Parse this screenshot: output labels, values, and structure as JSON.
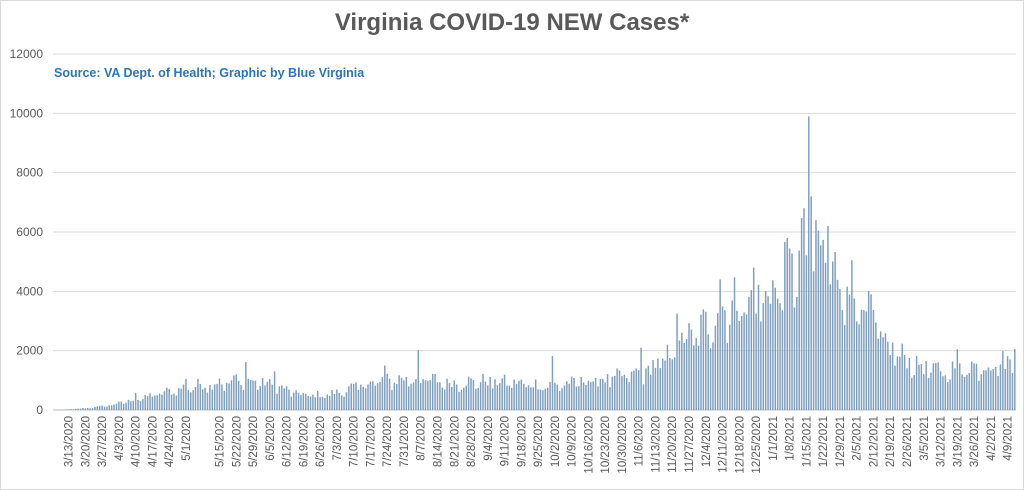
{
  "chart_data": {
    "type": "bar",
    "title": "Virginia COVID-19 NEW Cases*",
    "subtitle": "Source: VA Dept. of Health; Graphic by Blue Virginia",
    "ylim": [
      0,
      12000
    ],
    "yticks": [
      0,
      2000,
      4000,
      6000,
      8000,
      10000,
      12000
    ],
    "grid": true,
    "x_start": "2020-03-07",
    "x_end": "2021-04-12",
    "x_tick_labels": [
      "3/13/2020",
      "3/20/2020",
      "3/27/2020",
      "4/3/2020",
      "4/10/2020",
      "4/17/2020",
      "4/24/2020",
      "5/1/2020",
      "5/15/2020",
      "5/22/2020",
      "5/29/2020",
      "6/5/2020",
      "6/12/2020",
      "6/19/2020",
      "6/26/2020",
      "7/3/2020",
      "7/10/2020",
      "7/17/2020",
      "7/24/2020",
      "7/31/2020",
      "8/7/2020",
      "8/14/2020",
      "8/21/2020",
      "8/28/2020",
      "9/4/2020",
      "9/11/2020",
      "9/18/2020",
      "9/25/2020",
      "10/2/2020",
      "10/9/2020",
      "10/16/2020",
      "10/23/2020",
      "10/30/2020",
      "11/6/2020",
      "11/13/2020",
      "11/20/2020",
      "11/27/2020",
      "12/4/2020",
      "12/11/2020",
      "12/18/2020",
      "12/25/2020",
      "1/1/2021",
      "1/8/2021",
      "1/15/2021",
      "1/22/2021",
      "1/29/2021",
      "2/5/2021",
      "2/12/2021",
      "2/19/2021",
      "2/26/2021",
      "3/5/2021",
      "3/12/2021",
      "3/19/2021",
      "3/26/2021",
      "4/2/2021",
      "4/9/2021"
    ],
    "bar_color": "#7f9fbf",
    "weekly_avg_daily_new_cases": [
      {
        "week_of": "3/7/2020",
        "value": 5
      },
      {
        "week_of": "3/14/2020",
        "value": 40
      },
      {
        "week_of": "3/21/2020",
        "value": 90
      },
      {
        "week_of": "3/28/2020",
        "value": 170
      },
      {
        "week_of": "4/4/2020",
        "value": 300
      },
      {
        "week_of": "4/11/2020",
        "value": 420
      },
      {
        "week_of": "4/18/2020",
        "value": 560
      },
      {
        "week_of": "4/25/2020",
        "value": 680
      },
      {
        "week_of": "5/2/2020",
        "value": 800
      },
      {
        "week_of": "5/9/2020",
        "value": 880
      },
      {
        "week_of": "5/16/2020",
        "value": 900
      },
      {
        "week_of": "5/23/2020",
        "value": 960
      },
      {
        "week_of": "5/30/2020",
        "value": 900
      },
      {
        "week_of": "6/6/2020",
        "value": 750
      },
      {
        "week_of": "6/13/2020",
        "value": 550
      },
      {
        "week_of": "6/20/2020",
        "value": 480
      },
      {
        "week_of": "6/27/2020",
        "value": 520
      },
      {
        "week_of": "7/4/2020",
        "value": 650
      },
      {
        "week_of": "7/11/2020",
        "value": 850
      },
      {
        "week_of": "7/18/2020",
        "value": 950
      },
      {
        "week_of": "7/25/2020",
        "value": 1000
      },
      {
        "week_of": "8/1/2020",
        "value": 1050
      },
      {
        "week_of": "8/8/2020",
        "value": 1000
      },
      {
        "week_of": "8/15/2020",
        "value": 900
      },
      {
        "week_of": "8/22/2020",
        "value": 900
      },
      {
        "week_of": "8/29/2020",
        "value": 950
      },
      {
        "week_of": "9/5/2020",
        "value": 950
      },
      {
        "week_of": "9/12/2020",
        "value": 900
      },
      {
        "week_of": "9/19/2020",
        "value": 850
      },
      {
        "week_of": "9/26/2020",
        "value": 800
      },
      {
        "week_of": "10/3/2020",
        "value": 850
      },
      {
        "week_of": "10/10/2020",
        "value": 950
      },
      {
        "week_of": "10/17/2020",
        "value": 1000
      },
      {
        "week_of": "10/24/2020",
        "value": 1050
      },
      {
        "week_of": "10/31/2020",
        "value": 1150
      },
      {
        "week_of": "11/7/2020",
        "value": 1350
      },
      {
        "week_of": "11/14/2020",
        "value": 1650
      },
      {
        "week_of": "11/21/2020",
        "value": 2300
      },
      {
        "week_of": "11/28/2020",
        "value": 2500
      },
      {
        "week_of": "12/5/2020",
        "value": 3200
      },
      {
        "week_of": "12/12/2020",
        "value": 3500
      },
      {
        "week_of": "12/19/2020",
        "value": 3600
      },
      {
        "week_of": "12/26/2020",
        "value": 3800
      },
      {
        "week_of": "1/2/2021",
        "value": 4200
      },
      {
        "week_of": "1/9/2021",
        "value": 5000
      },
      {
        "week_of": "1/16/2021",
        "value": 5300
      },
      {
        "week_of": "1/23/2021",
        "value": 4600
      },
      {
        "week_of": "1/30/2021",
        "value": 3900
      },
      {
        "week_of": "2/6/2021",
        "value": 3200
      },
      {
        "week_of": "2/13/2021",
        "value": 2300
      },
      {
        "week_of": "2/20/2021",
        "value": 1800
      },
      {
        "week_of": "2/27/2021",
        "value": 1500
      },
      {
        "week_of": "3/6/2021",
        "value": 1300
      },
      {
        "week_of": "3/13/2021",
        "value": 1300
      },
      {
        "week_of": "3/20/2021",
        "value": 1400
      },
      {
        "week_of": "3/27/2021",
        "value": 1500
      },
      {
        "week_of": "4/3/2021",
        "value": 1550
      },
      {
        "week_of": "4/10/2021",
        "value": 1600
      }
    ],
    "notable_days": [
      {
        "date": "3/27/2020",
        "value": 150
      },
      {
        "date": "4/10/2020",
        "value": 580
      },
      {
        "date": "5/1/2020",
        "value": 1050
      },
      {
        "date": "5/15/2020",
        "value": 1060
      },
      {
        "date": "5/22/2020",
        "value": 1200
      },
      {
        "date": "5/26/2020",
        "value": 1615
      },
      {
        "date": "6/7/2020",
        "value": 1300
      },
      {
        "date": "7/23/2020",
        "value": 1500
      },
      {
        "date": "8/6/2020",
        "value": 2015
      },
      {
        "date": "10/1/2020",
        "value": 1820
      },
      {
        "date": "11/7/2020",
        "value": 2100
      },
      {
        "date": "11/22/2020",
        "value": 3250
      },
      {
        "date": "12/10/2020",
        "value": 4400
      },
      {
        "date": "12/24/2020",
        "value": 4800
      },
      {
        "date": "1/7/2021",
        "value": 5800
      },
      {
        "date": "1/14/2021",
        "value": 6800
      },
      {
        "date": "1/16/2021",
        "value": 9900
      },
      {
        "date": "1/17/2021",
        "value": 7200
      },
      {
        "date": "1/24/2021",
        "value": 6200
      },
      {
        "date": "2/3/2021",
        "value": 5050
      },
      {
        "date": "2/11/2021",
        "value": 3900
      },
      {
        "date": "2/18/2021",
        "value": 2300
      },
      {
        "date": "3/19/2021",
        "value": 2050
      },
      {
        "date": "4/12/2021",
        "value": 2050
      }
    ]
  }
}
